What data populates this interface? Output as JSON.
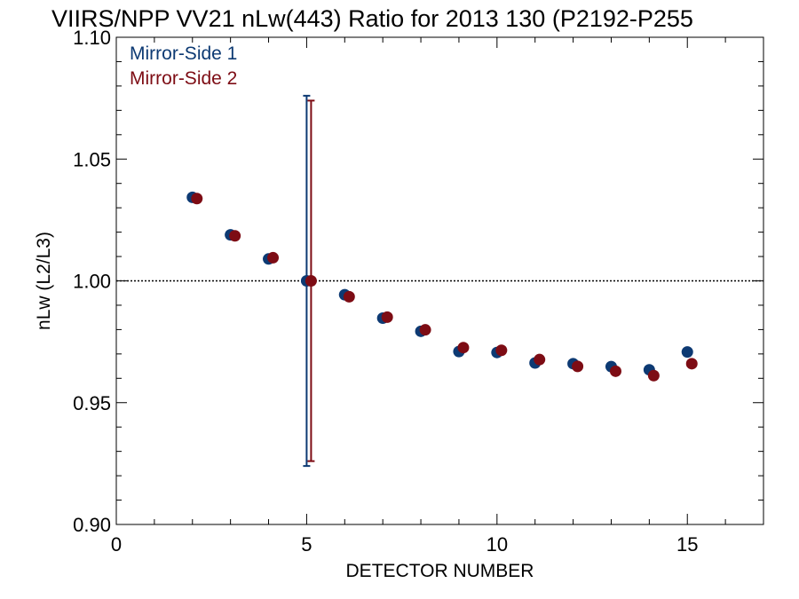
{
  "chart_data": {
    "type": "scatter",
    "title": "VIIRS/NPP VV21 nLw(443) Ratio for 2013 130 (P2192-P255",
    "xlabel": "DETECTOR NUMBER",
    "ylabel": "nLw (L2/L3)",
    "xlim": [
      0,
      17
    ],
    "ylim": [
      0.9,
      1.1
    ],
    "xticks": [
      0,
      5,
      10,
      15
    ],
    "xtick_labels": [
      "0",
      "5",
      "10",
      "15"
    ],
    "yticks": [
      0.9,
      0.95,
      1.0,
      1.05,
      1.1
    ],
    "ytick_labels": [
      "0.90",
      "0.95",
      "1.00",
      "1.05",
      "1.10"
    ],
    "reference_line": 1.0,
    "legend_position": "top-left",
    "series": [
      {
        "name": "Mirror-Side 1",
        "color": "#0d3a73",
        "x": [
          2,
          3,
          4,
          5,
          6,
          7,
          8,
          9,
          10,
          11,
          12,
          13,
          14,
          15
        ],
        "y": [
          1.0343,
          1.0189,
          1.009,
          1.0,
          0.9943,
          0.9847,
          0.9793,
          0.971,
          0.9706,
          0.9663,
          0.966,
          0.9648,
          0.9635,
          0.9708
        ],
        "error_bars": [
          {
            "x": 5,
            "low": 0.924,
            "high": 1.076
          }
        ]
      },
      {
        "name": "Mirror-Side 2",
        "color": "#7d0c14",
        "x": [
          2,
          3,
          4,
          5,
          6,
          7,
          8,
          9,
          10,
          11,
          12,
          13,
          14,
          15
        ],
        "y": [
          1.0338,
          1.0185,
          1.0095,
          1.0,
          0.9935,
          0.9851,
          0.9799,
          0.9726,
          0.9715,
          0.9677,
          0.9649,
          0.9629,
          0.9611,
          0.966
        ],
        "error_bars": [
          {
            "x": 5,
            "low": 0.926,
            "high": 1.074
          }
        ]
      }
    ]
  }
}
